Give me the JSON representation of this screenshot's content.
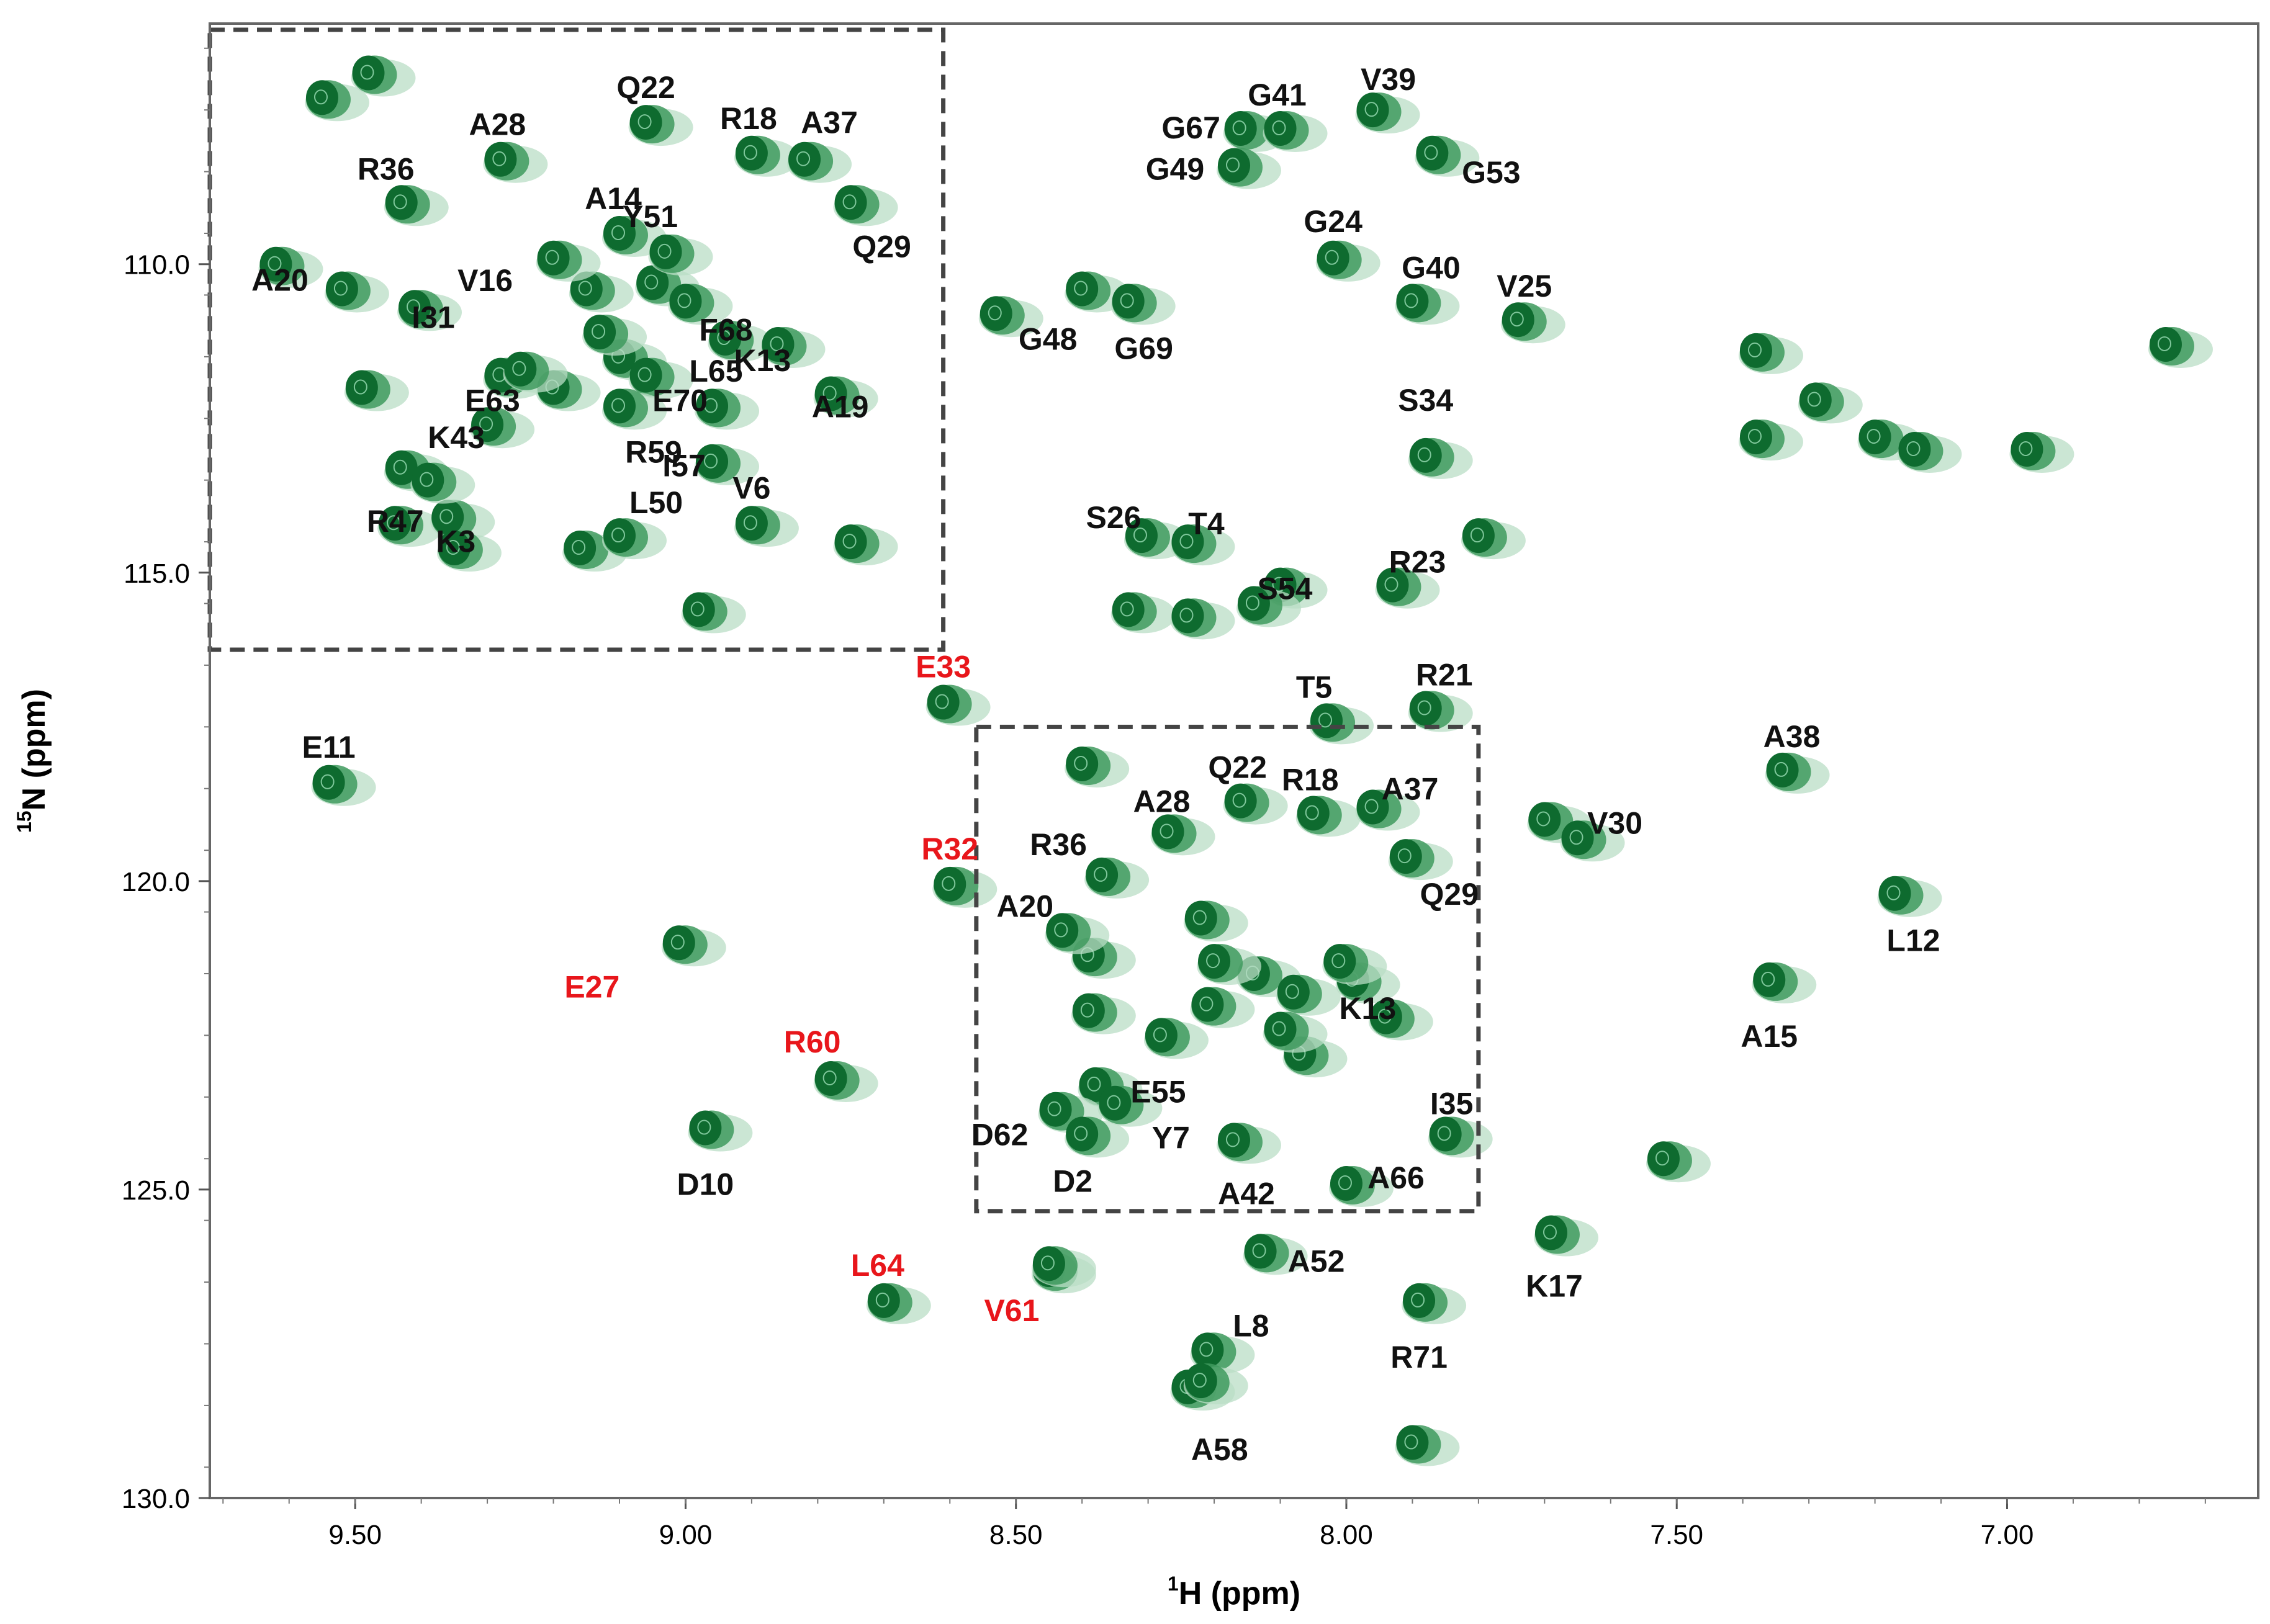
{
  "chart_data": {
    "type": "scatter",
    "title": "",
    "xlabel_prefix": "1",
    "xlabel_main": "H (ppm)",
    "ylabel_prefix": "15",
    "ylabel_main": "N (ppm)",
    "xlim": [
      9.72,
      6.62
    ],
    "ylim": [
      106.1,
      130.0
    ],
    "x_ticks": [
      9.5,
      9.0,
      8.5,
      8.0,
      7.5,
      7.0
    ],
    "x_tick_labels": [
      "9.50",
      "9.00",
      "8.50",
      "8.00",
      "7.50",
      "7.00"
    ],
    "y_ticks": [
      110.0,
      115.0,
      120.0,
      125.0,
      130.0
    ],
    "y_tick_labels": [
      "110.0",
      "115.0",
      "120.0",
      "125.0",
      "130.0"
    ],
    "zoom_box_main": {
      "h_range": [
        8.56,
        7.8
      ],
      "n_range": [
        117.5,
        125.35
      ]
    },
    "zoom_box_inset": {
      "h_range": [
        9.72,
        8.61
      ],
      "n_range": [
        106.2,
        116.25
      ]
    },
    "colors": {
      "peak": "#0e6b2f",
      "peak_halo": "#b9ddc6",
      "label": "#111111",
      "highlight_label": "#e8161b",
      "box": "#444444"
    },
    "assigned_peaks": [
      {
        "label": "E11",
        "h": 9.54,
        "n": 118.4,
        "highlight": false
      },
      {
        "label": "E33",
        "h": 8.61,
        "n": 117.1,
        "highlight": true
      },
      {
        "label": "R32",
        "h": 8.6,
        "n": 120.05,
        "highlight": true
      },
      {
        "label": "E27",
        "h": 9.01,
        "n": 121.0,
        "highlight": true
      },
      {
        "label": "R60",
        "h": 8.78,
        "n": 123.2,
        "highlight": true
      },
      {
        "label": "D10",
        "h": 8.97,
        "n": 124.0,
        "highlight": false
      },
      {
        "label": "L64",
        "h": 8.7,
        "n": 126.8,
        "highlight": true
      },
      {
        "label": "V61",
        "h": 8.45,
        "n": 126.2,
        "highlight": true
      },
      {
        "label": "G67",
        "h": 8.16,
        "n": 107.8,
        "highlight": false
      },
      {
        "label": "G41",
        "h": 8.1,
        "n": 107.8,
        "highlight": false
      },
      {
        "label": "V39",
        "h": 7.96,
        "n": 107.5,
        "highlight": false
      },
      {
        "label": "G49",
        "h": 8.17,
        "n": 108.4,
        "highlight": false
      },
      {
        "label": "G53",
        "h": 7.87,
        "n": 108.2,
        "highlight": false
      },
      {
        "label": "G24",
        "h": 8.02,
        "n": 109.9,
        "highlight": false
      },
      {
        "label": "G40",
        "h": 7.9,
        "n": 110.6,
        "highlight": false
      },
      {
        "label": "V25",
        "h": 7.74,
        "n": 110.9,
        "highlight": false
      },
      {
        "label": "G48",
        "h": 8.4,
        "n": 110.4,
        "highlight": false
      },
      {
        "label": "G69",
        "h": 8.33,
        "n": 110.6,
        "highlight": false
      },
      {
        "label": "S26",
        "h": 8.31,
        "n": 114.4,
        "highlight": false
      },
      {
        "label": "T4",
        "h": 8.24,
        "n": 114.5,
        "highlight": false
      },
      {
        "label": "S34",
        "h": 7.88,
        "n": 113.1,
        "highlight": false
      },
      {
        "label": "S54",
        "h": 8.14,
        "n": 115.5,
        "highlight": false
      },
      {
        "label": "R23",
        "h": 7.93,
        "n": 115.2,
        "highlight": false
      },
      {
        "label": "T5",
        "h": 8.03,
        "n": 117.4,
        "highlight": false
      },
      {
        "label": "R21",
        "h": 7.88,
        "n": 117.2,
        "highlight": false
      },
      {
        "label": "A38",
        "h": 7.34,
        "n": 118.2,
        "highlight": false
      },
      {
        "label": "V30",
        "h": 7.65,
        "n": 119.3,
        "highlight": false
      },
      {
        "label": "L12",
        "h": 7.17,
        "n": 120.2,
        "highlight": false
      },
      {
        "label": "A15",
        "h": 7.36,
        "n": 121.6,
        "highlight": false
      },
      {
        "label": "K17",
        "h": 7.69,
        "n": 125.7,
        "highlight": false
      },
      {
        "label": "A52",
        "h": 8.13,
        "n": 126.0,
        "highlight": false
      },
      {
        "label": "R71",
        "h": 7.89,
        "n": 126.8,
        "highlight": false
      },
      {
        "label": "L8",
        "h": 8.21,
        "n": 127.6,
        "highlight": false
      },
      {
        "label": "A58",
        "h": 8.22,
        "n": 128.1,
        "highlight": false
      },
      {
        "label": "Q22",
        "h": 8.16,
        "n": 118.7,
        "highlight": false
      },
      {
        "label": "R18",
        "h": 8.05,
        "n": 118.9,
        "highlight": false
      },
      {
        "label": "A37",
        "h": 7.96,
        "n": 118.8,
        "highlight": false
      },
      {
        "label": "A28",
        "h": 8.27,
        "n": 119.2,
        "highlight": false
      },
      {
        "label": "R36",
        "h": 8.37,
        "n": 119.9,
        "highlight": false
      },
      {
        "label": "Q29",
        "h": 7.91,
        "n": 119.6,
        "highlight": false
      },
      {
        "label": "A20",
        "h": 8.43,
        "n": 120.8,
        "highlight": false
      },
      {
        "label": "K13",
        "h": 8.01,
        "n": 121.3,
        "highlight": false
      },
      {
        "label": "E55",
        "h": 8.28,
        "n": 122.5,
        "highlight": false
      },
      {
        "label": "D62",
        "h": 8.44,
        "n": 123.7,
        "highlight": false
      },
      {
        "label": "Y7",
        "h": 8.35,
        "n": 123.6,
        "highlight": false
      },
      {
        "label": "I35",
        "h": 7.85,
        "n": 124.1,
        "highlight": false
      },
      {
        "label": "D2",
        "h": 8.4,
        "n": 124.1,
        "highlight": false
      },
      {
        "label": "A42",
        "h": 8.17,
        "n": 124.2,
        "highlight": false
      },
      {
        "label": "A66",
        "h": 8.0,
        "n": 124.9,
        "highlight": false
      },
      {
        "label": "Q22",
        "h": 9.06,
        "n": 107.7,
        "highlight": false
      },
      {
        "label": "R18",
        "h": 8.9,
        "n": 108.2,
        "highlight": false
      },
      {
        "label": "A37",
        "h": 8.82,
        "n": 108.3,
        "highlight": false
      },
      {
        "label": "A28",
        "h": 9.28,
        "n": 108.3,
        "highlight": false
      },
      {
        "label": "R36",
        "h": 9.43,
        "n": 109.0,
        "highlight": false
      },
      {
        "label": "Q29",
        "h": 8.75,
        "n": 109.0,
        "highlight": false
      },
      {
        "label": "A14",
        "h": 9.1,
        "n": 109.5,
        "highlight": false
      },
      {
        "label": "Y51",
        "h": 9.03,
        "n": 109.8,
        "highlight": false
      },
      {
        "label": "V16",
        "h": 9.2,
        "n": 109.9,
        "highlight": false
      },
      {
        "label": "A20",
        "h": 9.52,
        "n": 110.4,
        "highlight": false
      },
      {
        "label": "I31",
        "h": 9.41,
        "n": 110.7,
        "highlight": false
      },
      {
        "label": "F68",
        "h": 9.0,
        "n": 110.6,
        "highlight": false
      },
      {
        "label": "K13",
        "h": 8.94,
        "n": 111.2,
        "highlight": false
      },
      {
        "label": "L65",
        "h": 8.86,
        "n": 111.3,
        "highlight": false
      },
      {
        "label": "E63",
        "h": 9.25,
        "n": 111.7,
        "highlight": false
      },
      {
        "label": "E70",
        "h": 9.06,
        "n": 111.8,
        "highlight": false
      },
      {
        "label": "A19",
        "h": 8.78,
        "n": 112.1,
        "highlight": false
      },
      {
        "label": "I57",
        "h": 8.96,
        "n": 112.3,
        "highlight": false
      },
      {
        "label": "R47",
        "h": 9.43,
        "n": 113.3,
        "highlight": false
      },
      {
        "label": "K43",
        "h": 9.3,
        "n": 112.6,
        "highlight": false
      },
      {
        "label": "R59",
        "h": 9.1,
        "n": 112.3,
        "highlight": false
      },
      {
        "label": "L50",
        "h": 8.96,
        "n": 113.2,
        "highlight": false
      },
      {
        "label": "K3",
        "h": 9.39,
        "n": 113.5,
        "highlight": false
      },
      {
        "label": "V6",
        "h": 8.9,
        "n": 114.2,
        "highlight": false
      }
    ],
    "unassigned_peaks": [
      {
        "h": 9.48,
        "n": 106.9
      },
      {
        "h": 9.55,
        "n": 107.3
      },
      {
        "h": 9.62,
        "n": 110.0
      },
      {
        "h": 9.28,
        "n": 111.8
      },
      {
        "h": 9.2,
        "n": 112.0
      },
      {
        "h": 9.1,
        "n": 111.5
      },
      {
        "h": 9.15,
        "n": 110.4
      },
      {
        "h": 9.05,
        "n": 110.3
      },
      {
        "h": 9.13,
        "n": 111.1
      },
      {
        "h": 9.44,
        "n": 114.2
      },
      {
        "h": 9.36,
        "n": 114.1
      },
      {
        "h": 9.35,
        "n": 114.6
      },
      {
        "h": 9.16,
        "n": 114.6
      },
      {
        "h": 9.1,
        "n": 114.4
      },
      {
        "h": 8.98,
        "n": 115.6
      },
      {
        "h": 8.75,
        "n": 114.5
      },
      {
        "h": 9.49,
        "n": 112.0
      },
      {
        "h": 8.53,
        "n": 110.8
      },
      {
        "h": 7.38,
        "n": 111.4
      },
      {
        "h": 7.38,
        "n": 112.8
      },
      {
        "h": 7.29,
        "n": 112.2
      },
      {
        "h": 7.2,
        "n": 112.8
      },
      {
        "h": 7.14,
        "n": 113.0
      },
      {
        "h": 6.97,
        "n": 113.0
      },
      {
        "h": 6.76,
        "n": 111.3
      },
      {
        "h": 7.8,
        "n": 114.4
      },
      {
        "h": 8.33,
        "n": 115.6
      },
      {
        "h": 8.24,
        "n": 115.7
      },
      {
        "h": 8.1,
        "n": 115.2
      },
      {
        "h": 7.52,
        "n": 124.5
      },
      {
        "h": 7.7,
        "n": 119.0
      },
      {
        "h": 8.21,
        "n": 122.0
      },
      {
        "h": 8.14,
        "n": 121.5
      },
      {
        "h": 8.08,
        "n": 121.8
      },
      {
        "h": 7.99,
        "n": 121.6
      },
      {
        "h": 7.94,
        "n": 122.2
      },
      {
        "h": 8.07,
        "n": 122.8
      },
      {
        "h": 8.1,
        "n": 122.4
      },
      {
        "h": 8.39,
        "n": 121.2
      },
      {
        "h": 8.39,
        "n": 122.1
      },
      {
        "h": 8.38,
        "n": 123.3
      },
      {
        "h": 8.2,
        "n": 121.3
      },
      {
        "h": 8.22,
        "n": 120.6
      },
      {
        "h": 8.4,
        "n": 118.1
      },
      {
        "h": 7.9,
        "n": 129.1
      },
      {
        "h": 8.24,
        "n": 128.2
      },
      {
        "h": 8.45,
        "n": 126.3
      }
    ]
  }
}
